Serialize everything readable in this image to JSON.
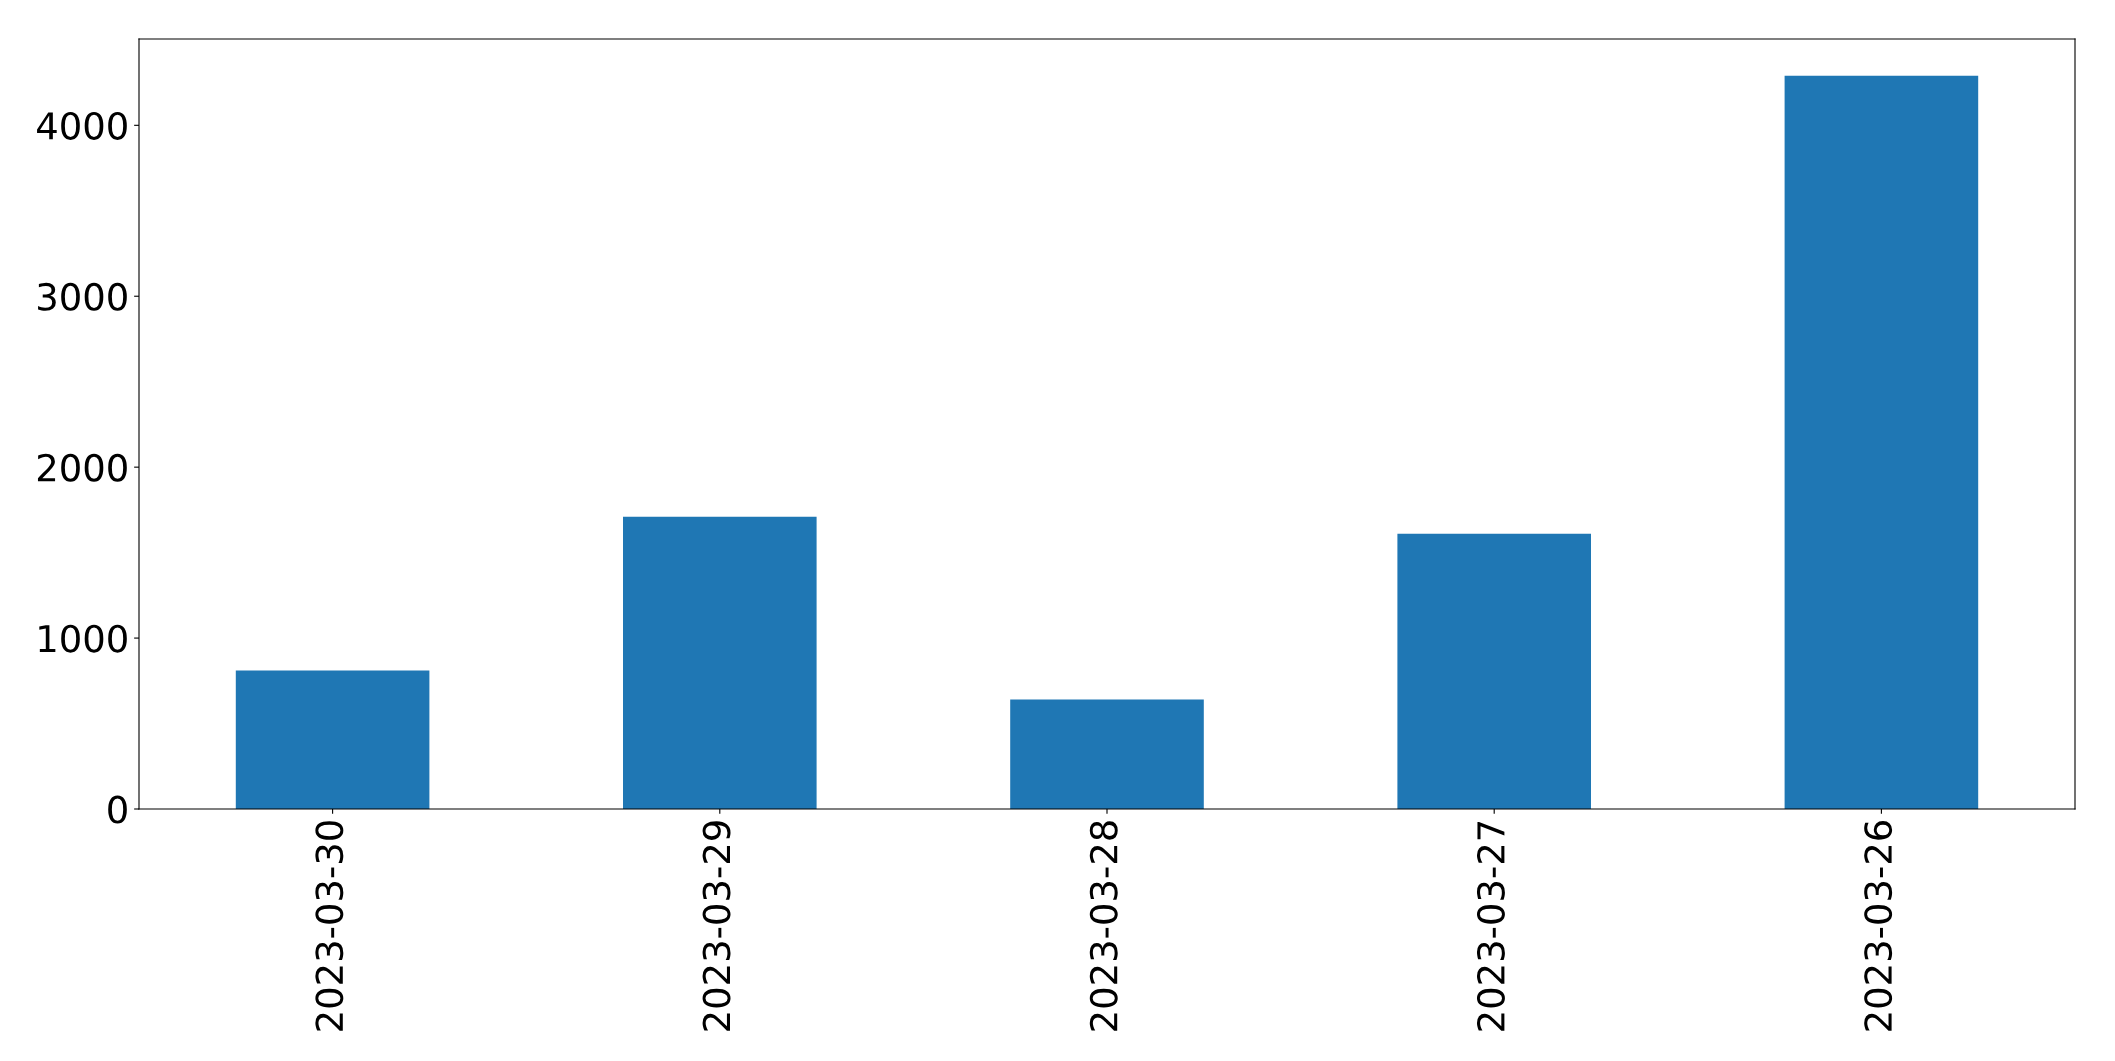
{
  "chart_data": {
    "type": "bar",
    "categories": [
      "2023-03-30",
      "2023-03-29",
      "2023-03-28",
      "2023-03-27",
      "2023-03-26"
    ],
    "values": [
      810,
      1710,
      640,
      1610,
      4290
    ],
    "color": "#1f77b4",
    "ylim": [
      0,
      4505
    ],
    "yticks": [
      0,
      1000,
      2000,
      3000,
      4000
    ],
    "grid": false,
    "legend": false
  }
}
